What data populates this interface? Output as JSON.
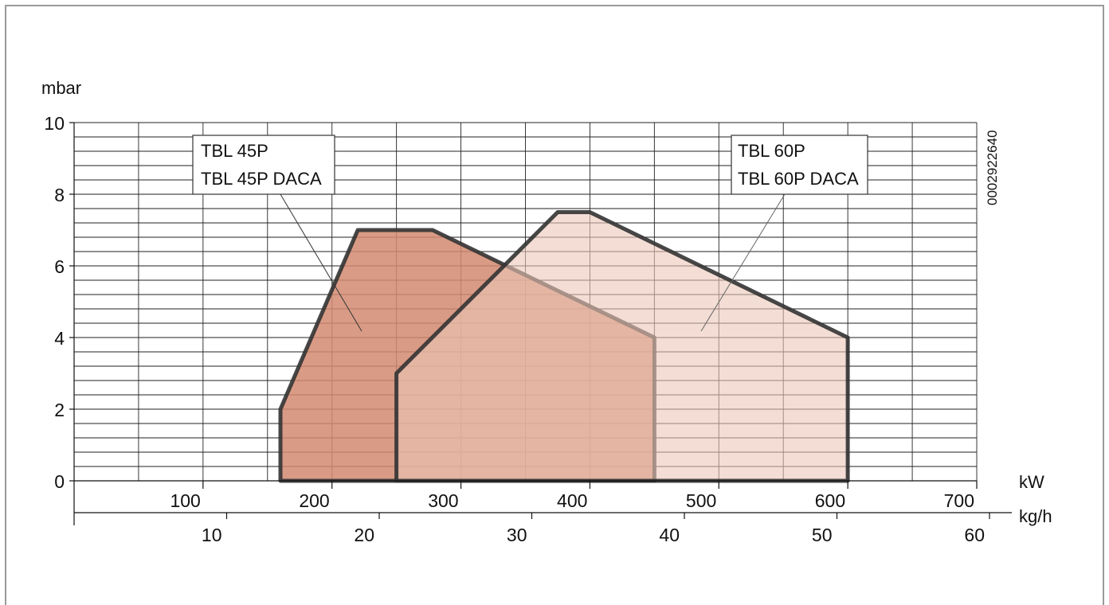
{
  "chart_data": {
    "type": "area",
    "title": "",
    "ylabel": "mbar",
    "xlabel": "kW",
    "x2label": "kg/h",
    "drawing_code": "0002922640",
    "xlim": [
      0,
      700
    ],
    "ylim": [
      0,
      10
    ],
    "x2lim": [
      0,
      60
    ],
    "x_ticks": [
      "100",
      "200",
      "300",
      "400",
      "500",
      "600",
      "700"
    ],
    "x2_ticks": [
      "10",
      "20",
      "30",
      "40",
      "50",
      "60"
    ],
    "y_ticks": [
      "0",
      "2",
      "4",
      "6",
      "8",
      "10"
    ],
    "grid": true,
    "series": [
      {
        "name": "TBL 45P",
        "name2": "TBL 45P DACA",
        "color": "#d28a70",
        "opacity": 0.85,
        "points": [
          [
            160,
            0
          ],
          [
            160,
            2
          ],
          [
            220,
            7
          ],
          [
            278,
            7
          ],
          [
            450,
            4
          ],
          [
            450,
            0
          ]
        ]
      },
      {
        "name": "TBL 60P",
        "name2": "TBL 60P DACA",
        "color": "#ebc6b7",
        "opacity": 0.6,
        "points": [
          [
            250,
            0
          ],
          [
            250,
            3
          ],
          [
            375,
            7.5
          ],
          [
            400,
            7.5
          ],
          [
            600,
            4
          ],
          [
            600,
            0
          ]
        ]
      }
    ]
  }
}
